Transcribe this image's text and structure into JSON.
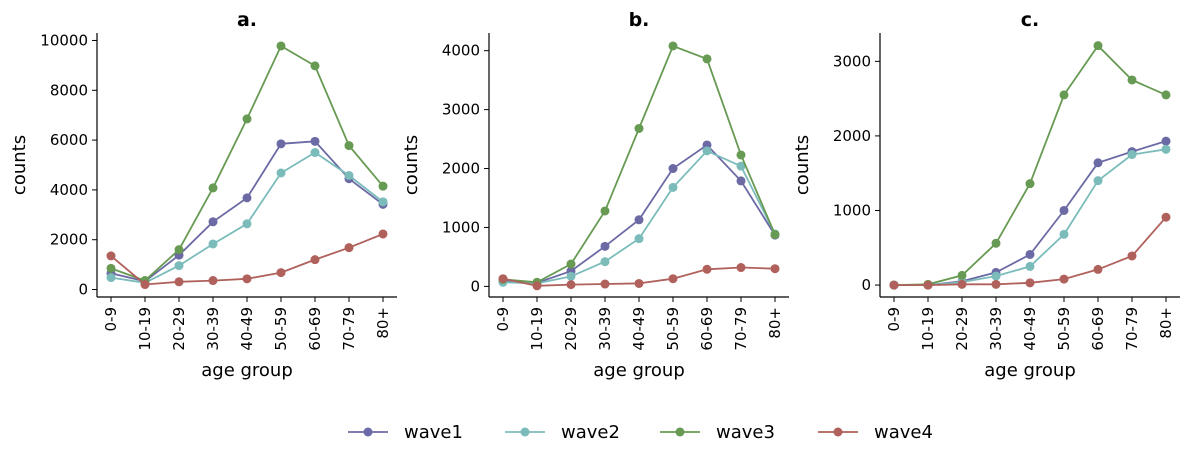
{
  "legend": {
    "position": "bottom-center",
    "entries": [
      {
        "name": "wave1",
        "color": "#6b6aa5"
      },
      {
        "name": "wave2",
        "color": "#7bbcbb"
      },
      {
        "name": "wave3",
        "color": "#679a53"
      },
      {
        "name": "wave4",
        "color": "#b0615c"
      }
    ]
  },
  "chart_data": [
    {
      "type": "line",
      "title": "a.",
      "xlabel": "age group",
      "ylabel": "counts",
      "categories": [
        "0-9",
        "10-19",
        "20-29",
        "30-39",
        "40-49",
        "50-59",
        "60-69",
        "70-79",
        "80+"
      ],
      "ylim": [
        -300,
        10300
      ],
      "yticks": [
        0,
        2000,
        4000,
        6000,
        8000,
        10000
      ],
      "grid": false,
      "series": [
        {
          "name": "wave1",
          "color": "#6b6aa5",
          "values": [
            650,
            330,
            1380,
            2720,
            3680,
            5850,
            5950,
            4450,
            3420
          ]
        },
        {
          "name": "wave2",
          "color": "#7bbcbb",
          "values": [
            480,
            270,
            960,
            1830,
            2640,
            4680,
            5500,
            4580,
            3520
          ]
        },
        {
          "name": "wave3",
          "color": "#679a53",
          "values": [
            850,
            360,
            1600,
            4080,
            6850,
            9780,
            8980,
            5780,
            4150
          ]
        },
        {
          "name": "wave4",
          "color": "#b0615c",
          "values": [
            1350,
            200,
            310,
            360,
            430,
            680,
            1200,
            1680,
            2230
          ]
        }
      ]
    },
    {
      "type": "line",
      "title": "b.",
      "xlabel": "age group",
      "ylabel": "counts",
      "categories": [
        "0-9",
        "10-19",
        "20-29",
        "30-39",
        "40-49",
        "50-59",
        "60-69",
        "70-79",
        "80+"
      ],
      "ylim": [
        -180,
        4300
      ],
      "yticks": [
        0,
        1000,
        2000,
        3000,
        4000
      ],
      "grid": false,
      "series": [
        {
          "name": "wave1",
          "color": "#6b6aa5",
          "values": [
            90,
            60,
            260,
            680,
            1130,
            2000,
            2400,
            1790,
            870
          ]
        },
        {
          "name": "wave2",
          "color": "#7bbcbb",
          "values": [
            70,
            50,
            170,
            420,
            810,
            1680,
            2300,
            2040,
            890
          ]
        },
        {
          "name": "wave3",
          "color": "#679a53",
          "values": [
            120,
            70,
            380,
            1280,
            2680,
            4080,
            3860,
            2230,
            880
          ]
        },
        {
          "name": "wave4",
          "color": "#b0615c",
          "values": [
            130,
            10,
            30,
            40,
            50,
            130,
            290,
            320,
            300
          ]
        }
      ]
    },
    {
      "type": "line",
      "title": "c.",
      "xlabel": "age group",
      "ylabel": "counts",
      "categories": [
        "0-9",
        "10-19",
        "20-29",
        "30-39",
        "40-49",
        "50-59",
        "60-69",
        "70-79",
        "80+"
      ],
      "ylim": [
        -160,
        3380
      ],
      "yticks": [
        0,
        1000,
        2000,
        3000
      ],
      "grid": false,
      "series": [
        {
          "name": "wave1",
          "color": "#6b6aa5",
          "values": [
            0,
            0,
            50,
            170,
            410,
            1000,
            1640,
            1790,
            1930
          ]
        },
        {
          "name": "wave2",
          "color": "#7bbcbb",
          "values": [
            0,
            0,
            40,
            120,
            250,
            680,
            1400,
            1750,
            1820
          ]
        },
        {
          "name": "wave3",
          "color": "#679a53",
          "values": [
            0,
            10,
            130,
            560,
            1360,
            2550,
            3210,
            2750,
            2550
          ]
        },
        {
          "name": "wave4",
          "color": "#b0615c",
          "values": [
            0,
            0,
            10,
            10,
            30,
            80,
            210,
            390,
            910
          ]
        }
      ]
    }
  ]
}
